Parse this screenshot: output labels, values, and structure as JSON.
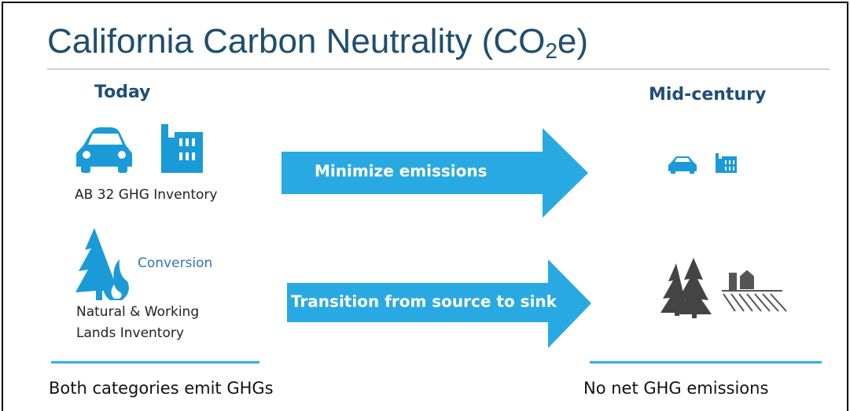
{
  "title": {
    "text_before": "California Carbon Neutrality (CO",
    "subscript": "2",
    "text_after": "e)"
  },
  "left": {
    "heading": "Today",
    "inventory": "AB 32 GHG Inventory",
    "conversion": "Conversion",
    "lands": [
      "Natural & Working",
      "Lands Inventory"
    ],
    "footer": "Both categories emit GHGs"
  },
  "arrows": [
    "Minimize emissions",
    "Transition from source to sink"
  ],
  "right": {
    "heading": "Mid-century",
    "footer": "No net GHG emissions"
  }
}
